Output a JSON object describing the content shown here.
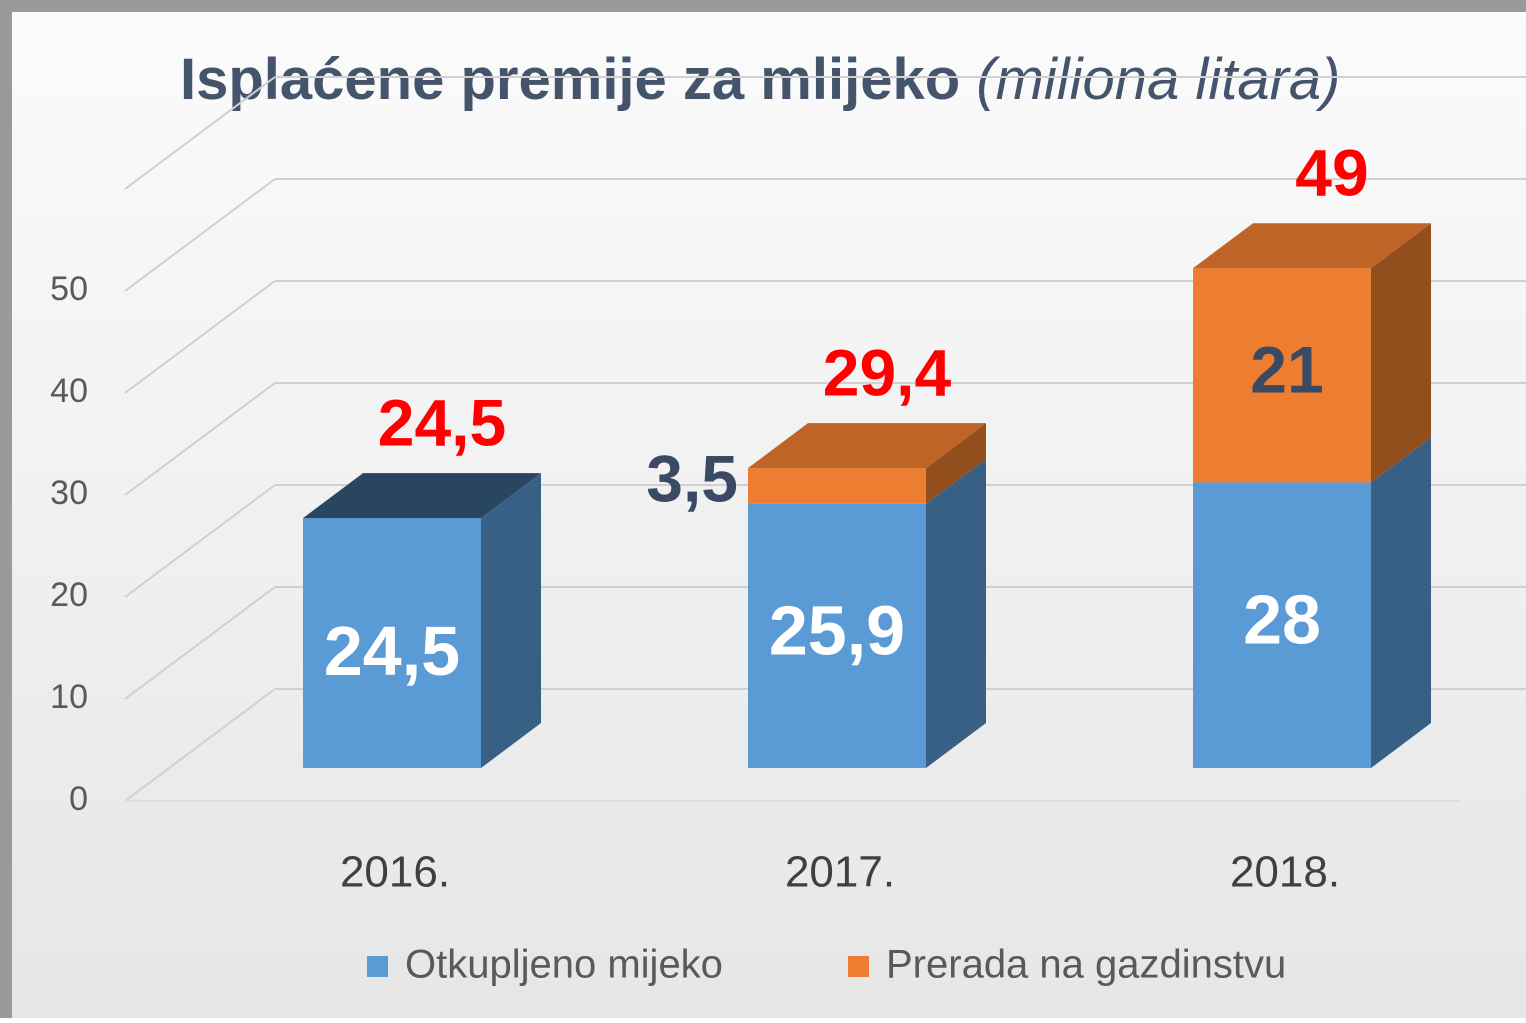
{
  "chart_data": {
    "type": "bar3d_stacked",
    "title": "Isplaćene premije za mlijeko",
    "title_note": "(miliona litara)",
    "categories": [
      "2016.",
      "2017.",
      "2018."
    ],
    "series": [
      {
        "name": "Otkupljeno mijeko",
        "color": "#5b9bd5",
        "values": [
          24.5,
          25.9,
          28
        ],
        "value_labels": [
          "24,5",
          "25,9",
          "28"
        ]
      },
      {
        "name": "Prerada na gazdinstvu",
        "color": "#ed7d31",
        "values": [
          null,
          3.5,
          21
        ],
        "value_labels": [
          null,
          "3,5",
          "21"
        ]
      }
    ],
    "totals": [
      24.5,
      29.4,
      49
    ],
    "total_labels": [
      "24,5",
      "29,4",
      "49"
    ],
    "ylim": [
      0,
      60
    ],
    "yticks": [
      0,
      10,
      20,
      30,
      40,
      50
    ],
    "grid": true,
    "legend": "bottom"
  }
}
